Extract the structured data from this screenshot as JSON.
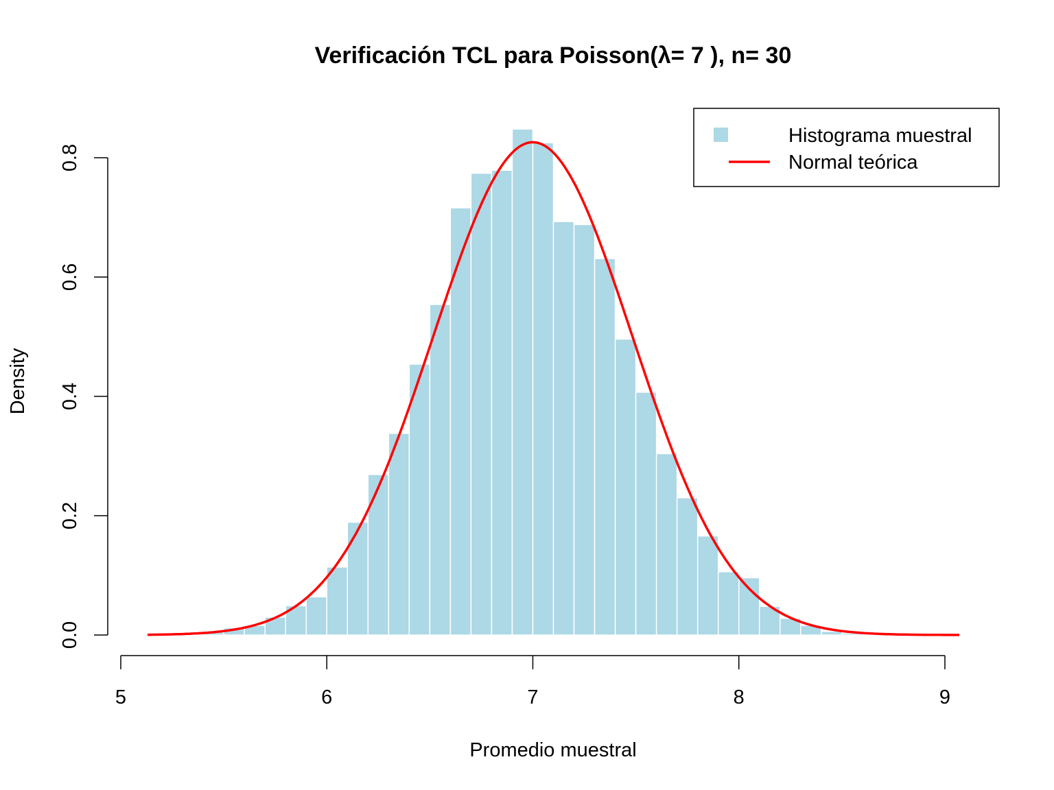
{
  "chart_data": {
    "type": "bar",
    "title": "Verificación TCL para Poisson(λ= 7 ), n= 30",
    "xlabel": "Promedio muestral",
    "ylabel": "Density",
    "xlim": [
      5,
      9
    ],
    "ylim": [
      0,
      0.85
    ],
    "x_ticks": [
      "5",
      "6",
      "7",
      "8",
      "9"
    ],
    "y_ticks": [
      "0.0",
      "0.2",
      "0.4",
      "0.6",
      "0.8"
    ],
    "grid": false,
    "legend_position": "top-right",
    "bin_width": 0.1,
    "bins": [
      {
        "start": 5.1,
        "end": 5.2,
        "density": 0.001
      },
      {
        "start": 5.2,
        "end": 5.3,
        "density": 0.002
      },
      {
        "start": 5.3,
        "end": 5.4,
        "density": 0.003
      },
      {
        "start": 5.4,
        "end": 5.5,
        "density": 0.005
      },
      {
        "start": 5.5,
        "end": 5.6,
        "density": 0.012
      },
      {
        "start": 5.6,
        "end": 5.7,
        "density": 0.016
      },
      {
        "start": 5.7,
        "end": 5.8,
        "density": 0.03
      },
      {
        "start": 5.8,
        "end": 5.9,
        "density": 0.049
      },
      {
        "start": 5.9,
        "end": 6.0,
        "density": 0.064
      },
      {
        "start": 6.0,
        "end": 6.1,
        "density": 0.114
      },
      {
        "start": 6.1,
        "end": 6.2,
        "density": 0.189
      },
      {
        "start": 6.2,
        "end": 6.3,
        "density": 0.269
      },
      {
        "start": 6.3,
        "end": 6.4,
        "density": 0.338
      },
      {
        "start": 6.4,
        "end": 6.5,
        "density": 0.454
      },
      {
        "start": 6.5,
        "end": 6.6,
        "density": 0.554
      },
      {
        "start": 6.6,
        "end": 6.7,
        "density": 0.716
      },
      {
        "start": 6.7,
        "end": 6.8,
        "density": 0.774
      },
      {
        "start": 6.8,
        "end": 6.9,
        "density": 0.779
      },
      {
        "start": 6.9,
        "end": 7.0,
        "density": 0.848
      },
      {
        "start": 7.0,
        "end": 7.1,
        "density": 0.825
      },
      {
        "start": 7.1,
        "end": 7.2,
        "density": 0.693
      },
      {
        "start": 7.2,
        "end": 7.3,
        "density": 0.688
      },
      {
        "start": 7.3,
        "end": 7.4,
        "density": 0.631
      },
      {
        "start": 7.4,
        "end": 7.5,
        "density": 0.496
      },
      {
        "start": 7.5,
        "end": 7.6,
        "density": 0.407
      },
      {
        "start": 7.6,
        "end": 7.7,
        "density": 0.304
      },
      {
        "start": 7.7,
        "end": 7.8,
        "density": 0.23
      },
      {
        "start": 7.8,
        "end": 7.9,
        "density": 0.166
      },
      {
        "start": 7.9,
        "end": 8.0,
        "density": 0.106
      },
      {
        "start": 8.0,
        "end": 8.1,
        "density": 0.096
      },
      {
        "start": 8.1,
        "end": 8.2,
        "density": 0.048
      },
      {
        "start": 8.2,
        "end": 8.3,
        "density": 0.028
      },
      {
        "start": 8.3,
        "end": 8.4,
        "density": 0.016
      },
      {
        "start": 8.4,
        "end": 8.5,
        "density": 0.006
      },
      {
        "start": 8.5,
        "end": 8.6,
        "density": 0.003
      }
    ],
    "curve": {
      "mean": 7,
      "sd": 0.483,
      "x_range": [
        5.13,
        9.07
      ]
    },
    "series": [
      {
        "name": "Histograma muestral",
        "kind": "histogram",
        "color": "#add8e6"
      },
      {
        "name": "Normal teórica",
        "kind": "line",
        "color": "#ff0000"
      }
    ]
  }
}
